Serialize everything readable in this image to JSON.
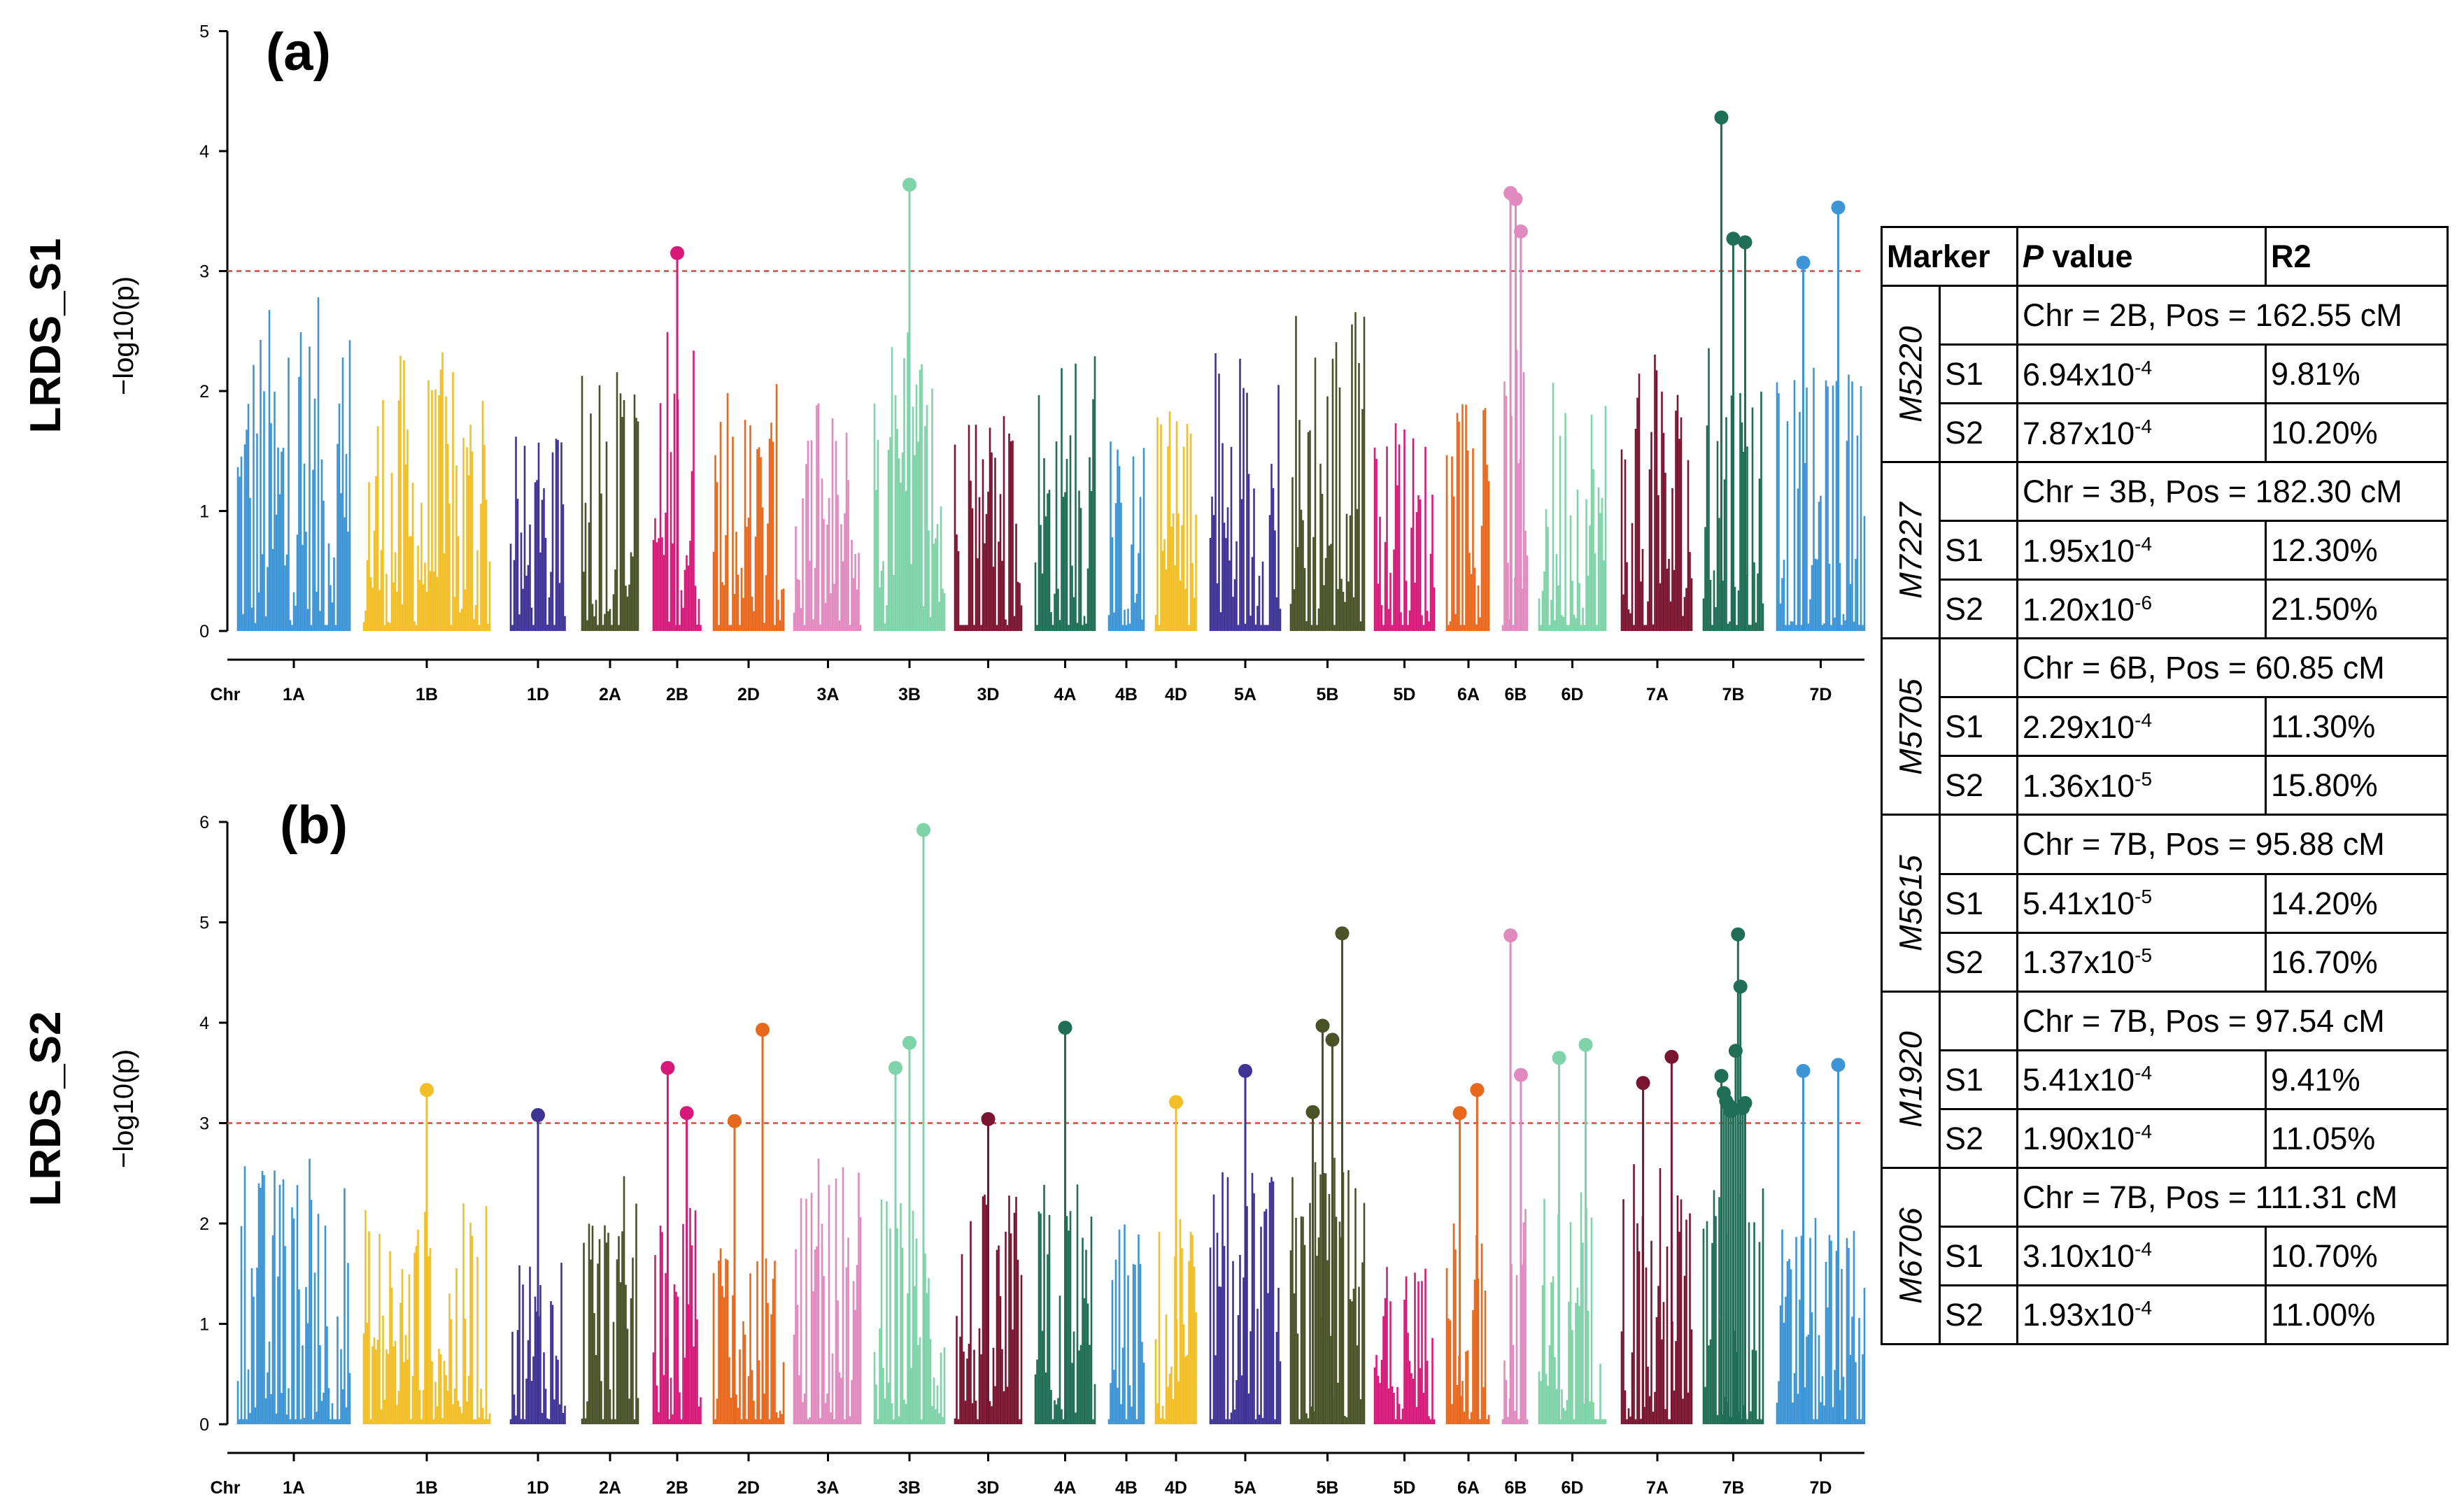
{
  "chart_data": [
    {
      "type": "scatter",
      "subtype": "manhattan",
      "panel_label": "(a)",
      "ylabel": "LRDS_S1",
      "ysublabel": "−log10(p)",
      "ylim": [
        0,
        5
      ],
      "yticks": [
        "0",
        "1",
        "2",
        "3",
        "4",
        "5"
      ],
      "threshold": 3,
      "xlabel": "Chr",
      "chromosomes": [
        "1A",
        "1B",
        "1D",
        "2A",
        "2B",
        "2D",
        "3A",
        "3B",
        "3D",
        "4A",
        "4B",
        "4D",
        "5A",
        "5B",
        "5D",
        "6A",
        "6B",
        "6D",
        "7A",
        "7B",
        "7D"
      ],
      "chr_colors": [
        "#3d95d6",
        "#f2bf27",
        "#3f3395",
        "#4a5228",
        "#d71a7a",
        "#e8681e",
        "#e08ac0",
        "#7fd3a8",
        "#7a1531",
        "#1f6e55",
        "#3d95d6",
        "#f2bf27",
        "#3f3395",
        "#4a5228",
        "#d71a7a",
        "#e8681e",
        "#e08ac0",
        "#7fd3a8",
        "#7a1531",
        "#1f6e55",
        "#3d95d6"
      ],
      "peaks": [
        0.95,
        0.8,
        0.55,
        0.75,
        0.9,
        0.7,
        0.65,
        0.85,
        0.65,
        0.8,
        0.55,
        0.65,
        0.8,
        1.0,
        0.6,
        0.65,
        0.8,
        0.75,
        0.8,
        0.85,
        0.75
      ],
      "significant": [
        {
          "chr": "2B",
          "values": [
            3.15
          ]
        },
        {
          "chr": "3B",
          "values": [
            3.72
          ]
        },
        {
          "chr": "6B",
          "values": [
            3.65,
            3.6,
            3.33
          ]
        },
        {
          "chr": "7B",
          "values": [
            4.28,
            3.27,
            3.24
          ]
        },
        {
          "chr": "7D",
          "values": [
            3.07,
            3.53
          ]
        }
      ]
    },
    {
      "type": "scatter",
      "subtype": "manhattan",
      "panel_label": "(b)",
      "ylabel": "LRDS_S2",
      "ysublabel": "−log10(p)",
      "ylim": [
        0,
        6
      ],
      "yticks": [
        "0",
        "1",
        "2",
        "3",
        "4",
        "5",
        "6"
      ],
      "threshold": 3,
      "xlabel": "Chr",
      "chromosomes": [
        "1A",
        "1B",
        "1D",
        "2A",
        "2B",
        "2D",
        "3A",
        "3B",
        "3D",
        "4A",
        "4B",
        "4D",
        "5A",
        "5B",
        "5D",
        "6A",
        "6B",
        "6D",
        "7A",
        "7B",
        "7D"
      ],
      "chr_colors": [
        "#3d95d6",
        "#f2bf27",
        "#3f3395",
        "#4a5228",
        "#d71a7a",
        "#e8681e",
        "#e08ac0",
        "#7fd3a8",
        "#7a1531",
        "#1f6e55",
        "#3d95d6",
        "#f2bf27",
        "#3f3395",
        "#4a5228",
        "#d71a7a",
        "#e8681e",
        "#e08ac0",
        "#7fd3a8",
        "#7a1531",
        "#1f6e55",
        "#3d95d6"
      ],
      "peaks": [
        0.9,
        0.75,
        0.65,
        0.85,
        0.75,
        0.6,
        0.9,
        0.8,
        0.8,
        0.85,
        0.7,
        0.7,
        0.9,
        0.9,
        0.55,
        0.75,
        0.8,
        0.8,
        0.9,
        0.85,
        0.7
      ],
      "significant": [
        {
          "chr": "1B",
          "values": [
            3.33
          ]
        },
        {
          "chr": "1D",
          "values": [
            3.08
          ]
        },
        {
          "chr": "2B",
          "values": [
            3.55,
            3.1
          ]
        },
        {
          "chr": "2D",
          "values": [
            3.02,
            3.93
          ]
        },
        {
          "chr": "3B",
          "values": [
            3.55,
            3.8,
            5.92
          ]
        },
        {
          "chr": "3D",
          "values": [
            3.04
          ]
        },
        {
          "chr": "4A",
          "values": [
            3.95
          ]
        },
        {
          "chr": "4D",
          "values": [
            3.21
          ]
        },
        {
          "chr": "5A",
          "values": [
            3.52
          ]
        },
        {
          "chr": "5B",
          "values": [
            3.11,
            3.97,
            3.83,
            4.89
          ]
        },
        {
          "chr": "6A",
          "values": [
            3.1,
            3.33
          ]
        },
        {
          "chr": "6B",
          "values": [
            4.87,
            3.48
          ]
        },
        {
          "chr": "6D",
          "values": [
            3.65,
            3.78
          ]
        },
        {
          "chr": "7A",
          "values": [
            3.4,
            3.66
          ]
        },
        {
          "chr": "7B",
          "values": [
            3.47,
            3.3,
            3.22,
            3.18,
            3.12,
            3.14,
            3.72,
            4.88,
            4.36,
            3.15,
            3.2
          ]
        },
        {
          "chr": "7D",
          "values": [
            3.52,
            3.58
          ]
        }
      ]
    }
  ],
  "table": {
    "headers": {
      "marker": "Marker",
      "p_italic": "P",
      "p_rest": " value",
      "r2": "R2"
    },
    "markers": [
      {
        "name": "M5220",
        "position": "Chr = 2B, Pos = 162.55 cM",
        "rows": [
          {
            "s": "S1",
            "p_base": "6.94x10",
            "p_exp": "-4",
            "r2": "9.81%"
          },
          {
            "s": "S2",
            "p_base": "7.87x10",
            "p_exp": "-4",
            "r2": "10.20%"
          }
        ]
      },
      {
        "name": "M7227",
        "position": "Chr = 3B, Pos = 182.30 cM",
        "rows": [
          {
            "s": "S1",
            "p_base": "1.95x10",
            "p_exp": "-4",
            "r2": "12.30%"
          },
          {
            "s": "S2",
            "p_base": "1.20x10",
            "p_exp": "-6",
            "r2": "21.50%"
          }
        ]
      },
      {
        "name": "M5705",
        "position": "Chr = 6B, Pos = 60.85 cM",
        "rows": [
          {
            "s": "S1",
            "p_base": "2.29x10",
            "p_exp": "-4",
            "r2": "11.30%"
          },
          {
            "s": "S2",
            "p_base": "1.36x10",
            "p_exp": "-5",
            "r2": "15.80%"
          }
        ]
      },
      {
        "name": "M5615",
        "position": "Chr = 7B, Pos = 95.88 cM",
        "rows": [
          {
            "s": "S1",
            "p_base": "5.41x10",
            "p_exp": "-5",
            "r2": "14.20%"
          },
          {
            "s": "S2",
            "p_base": "1.37x10",
            "p_exp": "-5",
            "r2": "16.70%"
          }
        ]
      },
      {
        "name": "M1920",
        "position": "Chr = 7B, Pos = 97.54 cM",
        "rows": [
          {
            "s": "S1",
            "p_base": "5.41x10",
            "p_exp": "-4",
            "r2": "9.41%"
          },
          {
            "s": "S2",
            "p_base": "1.90x10",
            "p_exp": "-4",
            "r2": "11.05%"
          }
        ]
      },
      {
        "name": "M6706",
        "position": "Chr = 7B, Pos = 111.31 cM",
        "rows": [
          {
            "s": "S1",
            "p_base": "3.10x10",
            "p_exp": "-4",
            "r2": "10.70%"
          },
          {
            "s": "S2",
            "p_base": "1.93x10",
            "p_exp": "-4",
            "r2": "11.00%"
          }
        ]
      }
    ]
  }
}
